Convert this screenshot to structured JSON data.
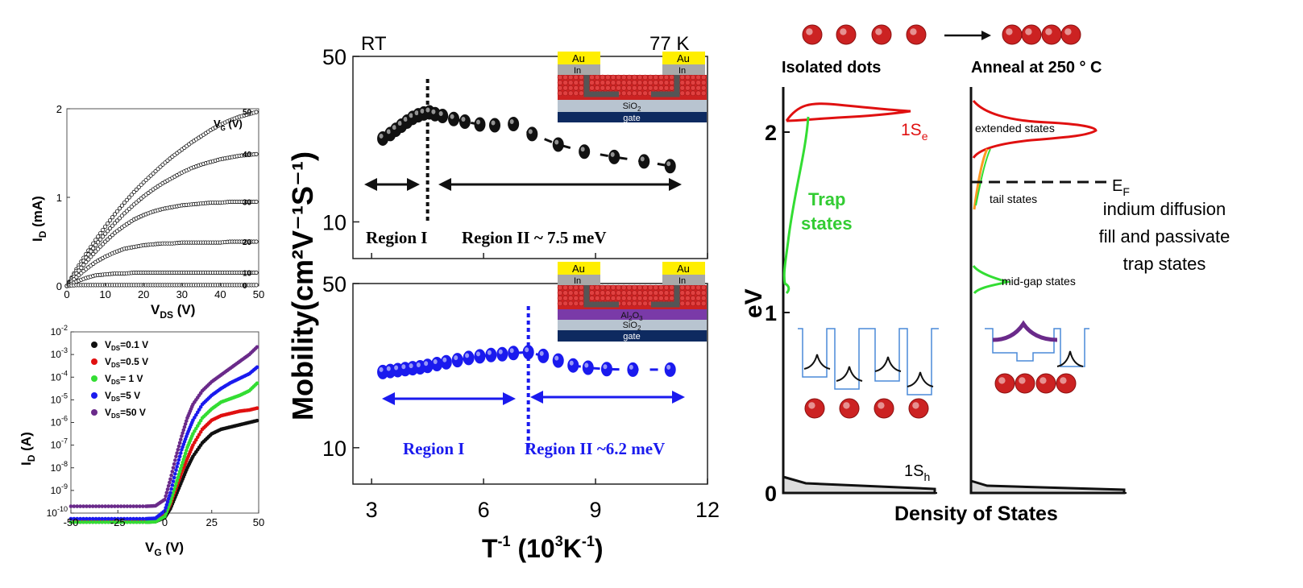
{
  "figure": {
    "colors": {
      "black": "#111111",
      "blue": "#1a1aee",
      "red": "#e01010",
      "green": "#33dd33",
      "purple": "#6a2a8a",
      "orange": "#ff9922",
      "dot": "#cc2222",
      "au": "#ffee00",
      "in": "#a8a8a8",
      "sio2": "#b8c4d0",
      "gate": "#0e2a60",
      "al2o3": "#7a3aa8",
      "well": "#4a8ad8"
    }
  },
  "chart_data": [
    {
      "id": "output",
      "type": "line",
      "xlabel_main": "V",
      "xlabel_sub": "DS",
      "xlabel_unit": " (V)",
      "ylabel_main": "I",
      "ylabel_sub": "D",
      "ylabel_unit": " (mA)",
      "xlim": [
        0,
        50
      ],
      "ylim": [
        0,
        2
      ],
      "xticks": [
        "0",
        "10",
        "20",
        "30",
        "40",
        "50"
      ],
      "yticks": [
        "0",
        "1",
        "2"
      ],
      "legend_title_main": "V",
      "legend_title_sub": "G",
      "legend_title_unit": " (V)",
      "x": [
        0,
        2.5,
        5,
        7.5,
        10,
        12.5,
        15,
        17.5,
        20,
        22.5,
        25,
        27.5,
        30,
        32.5,
        35,
        37.5,
        40,
        42.5,
        45,
        47.5,
        50
      ],
      "series": [
        {
          "name": "50",
          "values": [
            0.0,
            0.19,
            0.36,
            0.52,
            0.67,
            0.81,
            0.94,
            1.06,
            1.17,
            1.27,
            1.37,
            1.46,
            1.54,
            1.62,
            1.69,
            1.76,
            1.82,
            1.87,
            1.91,
            1.94,
            1.97
          ]
        },
        {
          "name": "40",
          "values": [
            0.0,
            0.17,
            0.32,
            0.46,
            0.59,
            0.71,
            0.82,
            0.92,
            1.01,
            1.09,
            1.16,
            1.22,
            1.28,
            1.33,
            1.37,
            1.4,
            1.43,
            1.45,
            1.47,
            1.48,
            1.49
          ]
        },
        {
          "name": "30",
          "values": [
            0.0,
            0.14,
            0.27,
            0.39,
            0.5,
            0.6,
            0.68,
            0.75,
            0.8,
            0.84,
            0.87,
            0.89,
            0.91,
            0.92,
            0.93,
            0.94,
            0.94,
            0.95,
            0.95,
            0.95,
            0.95
          ]
        },
        {
          "name": "20",
          "values": [
            0.0,
            0.1,
            0.19,
            0.27,
            0.33,
            0.38,
            0.42,
            0.44,
            0.46,
            0.47,
            0.48,
            0.48,
            0.49,
            0.49,
            0.49,
            0.49,
            0.49,
            0.5,
            0.5,
            0.5,
            0.5
          ]
        },
        {
          "name": "10",
          "values": [
            0.0,
            0.05,
            0.09,
            0.12,
            0.13,
            0.14,
            0.14,
            0.15,
            0.15,
            0.15,
            0.15,
            0.15,
            0.15,
            0.15,
            0.15,
            0.15,
            0.15,
            0.15,
            0.15,
            0.15,
            0.15
          ]
        },
        {
          "name": "0",
          "values": [
            0.0,
            0.01,
            0.01,
            0.01,
            0.01,
            0.01,
            0.01,
            0.01,
            0.01,
            0.01,
            0.01,
            0.01,
            0.01,
            0.01,
            0.01,
            0.01,
            0.01,
            0.01,
            0.01,
            0.01,
            0.01
          ]
        }
      ]
    },
    {
      "id": "transfer",
      "type": "line",
      "yscale": "log",
      "xlabel_main": "V",
      "xlabel_sub": "G",
      "xlabel_unit": " (V)",
      "ylabel_main": "I",
      "ylabel_sub": "D",
      "ylabel_unit": " (A)",
      "xlim": [
        -50,
        50
      ],
      "ylim_exp": [
        -10,
        -2
      ],
      "xticks": [
        "-50",
        "-25",
        "0",
        "25",
        "50"
      ],
      "ytick_base": "10",
      "ytick_exps": [
        "-10",
        "-9",
        "-8",
        "-7",
        "-6",
        "-5",
        "-4",
        "-3",
        "-2"
      ],
      "x": [
        -50,
        -40,
        -30,
        -20,
        -10,
        -5,
        0,
        3,
        6,
        9,
        12,
        15,
        20,
        25,
        30,
        35,
        40,
        45,
        50
      ],
      "series": [
        {
          "name": "=0.1 V",
          "label_main": "V",
          "label_sub": "DS",
          "color": "#111111",
          "values": [
            -10.4,
            -10.4,
            -10.4,
            -10.4,
            -10.4,
            -10.38,
            -10.2,
            -9.8,
            -9.2,
            -8.6,
            -8.0,
            -7.5,
            -6.9,
            -6.5,
            -6.3,
            -6.2,
            -6.1,
            -6.0,
            -5.9
          ]
        },
        {
          "name": "=0.5 V",
          "label_main": "V",
          "label_sub": "DS",
          "color": "#e01010",
          "values": [
            -10.35,
            -10.35,
            -10.35,
            -10.35,
            -10.35,
            -10.33,
            -10.1,
            -9.6,
            -8.9,
            -8.2,
            -7.6,
            -7.0,
            -6.3,
            -5.9,
            -5.7,
            -5.6,
            -5.5,
            -5.45,
            -5.35
          ]
        },
        {
          "name": "= 1 V",
          "label_main": "V",
          "label_sub": "DS",
          "color": "#33dd33",
          "values": [
            -10.4,
            -10.4,
            -10.4,
            -10.4,
            -10.4,
            -10.38,
            -10.15,
            -9.5,
            -8.7,
            -7.9,
            -7.1,
            -6.5,
            -5.8,
            -5.4,
            -5.1,
            -4.95,
            -4.8,
            -4.6,
            -4.2
          ]
        },
        {
          "name": "=5 V",
          "label_main": "V",
          "label_sub": "DS",
          "color": "#1a1aee",
          "values": [
            -10.25,
            -10.25,
            -10.25,
            -10.25,
            -10.25,
            -10.23,
            -9.9,
            -9.1,
            -8.1,
            -7.2,
            -6.5,
            -5.9,
            -5.2,
            -4.8,
            -4.5,
            -4.25,
            -4.05,
            -3.85,
            -3.5
          ]
        },
        {
          "name": "=50 V",
          "label_main": "V",
          "label_sub": "DS",
          "color": "#6a2a8a",
          "values": [
            -9.7,
            -9.7,
            -9.7,
            -9.7,
            -9.7,
            -9.68,
            -9.4,
            -8.5,
            -7.5,
            -6.6,
            -5.8,
            -5.2,
            -4.6,
            -4.2,
            -3.9,
            -3.6,
            -3.3,
            -3.0,
            -2.6
          ]
        }
      ]
    },
    {
      "id": "mobility-rt",
      "type": "scatter",
      "yscale": "log",
      "xlim": [
        2.5,
        12
      ],
      "ylim": [
        7,
        50
      ],
      "yticks": [
        "10",
        "50"
      ],
      "corner_left": "RT",
      "corner_right": "77 K",
      "region_1": "Region I",
      "region_2": "Region II ~ 7.5 meV",
      "boundary_x": 4.5,
      "x": [
        3.3,
        3.5,
        3.65,
        3.8,
        3.95,
        4.1,
        4.25,
        4.4,
        4.55,
        4.7,
        4.9,
        5.2,
        5.5,
        5.9,
        6.3,
        6.8,
        7.3,
        8.0,
        8.7,
        9.5,
        10.3,
        11.0
      ],
      "values": [
        22.5,
        23.5,
        24.5,
        25.5,
        26.5,
        27.5,
        28.2,
        28.7,
        29.0,
        28.5,
        28.0,
        27.2,
        26.5,
        25.8,
        25.6,
        25.9,
        23.5,
        21.2,
        19.8,
        18.8,
        18.0,
        17.2
      ]
    },
    {
      "id": "mobility-al2o3",
      "type": "scatter",
      "yscale": "log",
      "xlim": [
        2.5,
        12
      ],
      "ylim": [
        7,
        50
      ],
      "xticks": [
        "3",
        "6",
        "9",
        "12"
      ],
      "yticks": [
        "10",
        "50"
      ],
      "region_1": "Region I",
      "region_2": "Region II ~6.2 meV",
      "boundary_x": 7.2,
      "x": [
        3.3,
        3.5,
        3.7,
        3.9,
        4.1,
        4.3,
        4.5,
        4.75,
        5.0,
        5.3,
        5.6,
        5.9,
        6.2,
        6.5,
        6.8,
        7.2,
        7.6,
        8.0,
        8.4,
        8.8,
        9.3,
        10.0,
        11.0
      ],
      "values": [
        21.0,
        21.2,
        21.4,
        21.6,
        21.8,
        22.0,
        22.3,
        22.7,
        23.1,
        23.6,
        24.1,
        24.5,
        24.8,
        25.0,
        25.3,
        25.5,
        24.6,
        23.5,
        22.4,
        21.9,
        21.6,
        21.5,
        21.5
      ]
    },
    {
      "id": "dos",
      "type": "line",
      "xlabel": "Density of States",
      "ylabel": "eV",
      "ylim": [
        0,
        2.25
      ],
      "yticks": [
        "0",
        "1",
        "2"
      ],
      "left_title": "Isolated dots",
      "right_title": "Anneal at 250 ° C",
      "labels": {
        "s_e": "1S",
        "s_e_sub": "e",
        "s_h": "1S",
        "s_h_sub": "h",
        "trap_1": "Trap",
        "trap_2": "states",
        "extended": "extended states",
        "ef": "E",
        "ef_sub": "F",
        "tail": "tail states",
        "note_1": "indium diffusion",
        "note_2": "fill and passivate",
        "note_3": "trap states",
        "midgap": "mid-gap states"
      }
    }
  ],
  "shared_labels": {
    "mobility_ylabel": "Mobility(cm²V⁻¹S⁻¹)",
    "mobility_xlabel_main": "T",
    "mobility_xlabel_sup1": "-1",
    "mobility_xlabel_mid": " (10",
    "mobility_xlabel_sup2": "3",
    "mobility_xlabel_tail": "K",
    "mobility_xlabel_sup3": "-1",
    "mobility_xlabel_end": ")"
  },
  "inset_labels": {
    "au": "Au",
    "in": "In",
    "sio2": "SiO",
    "sio2_sub": "2",
    "gate": "gate",
    "al2o3": "Al",
    "al2o3_sub": "2",
    "al2o3_o": "O",
    "al2o3_sub2": "3"
  }
}
